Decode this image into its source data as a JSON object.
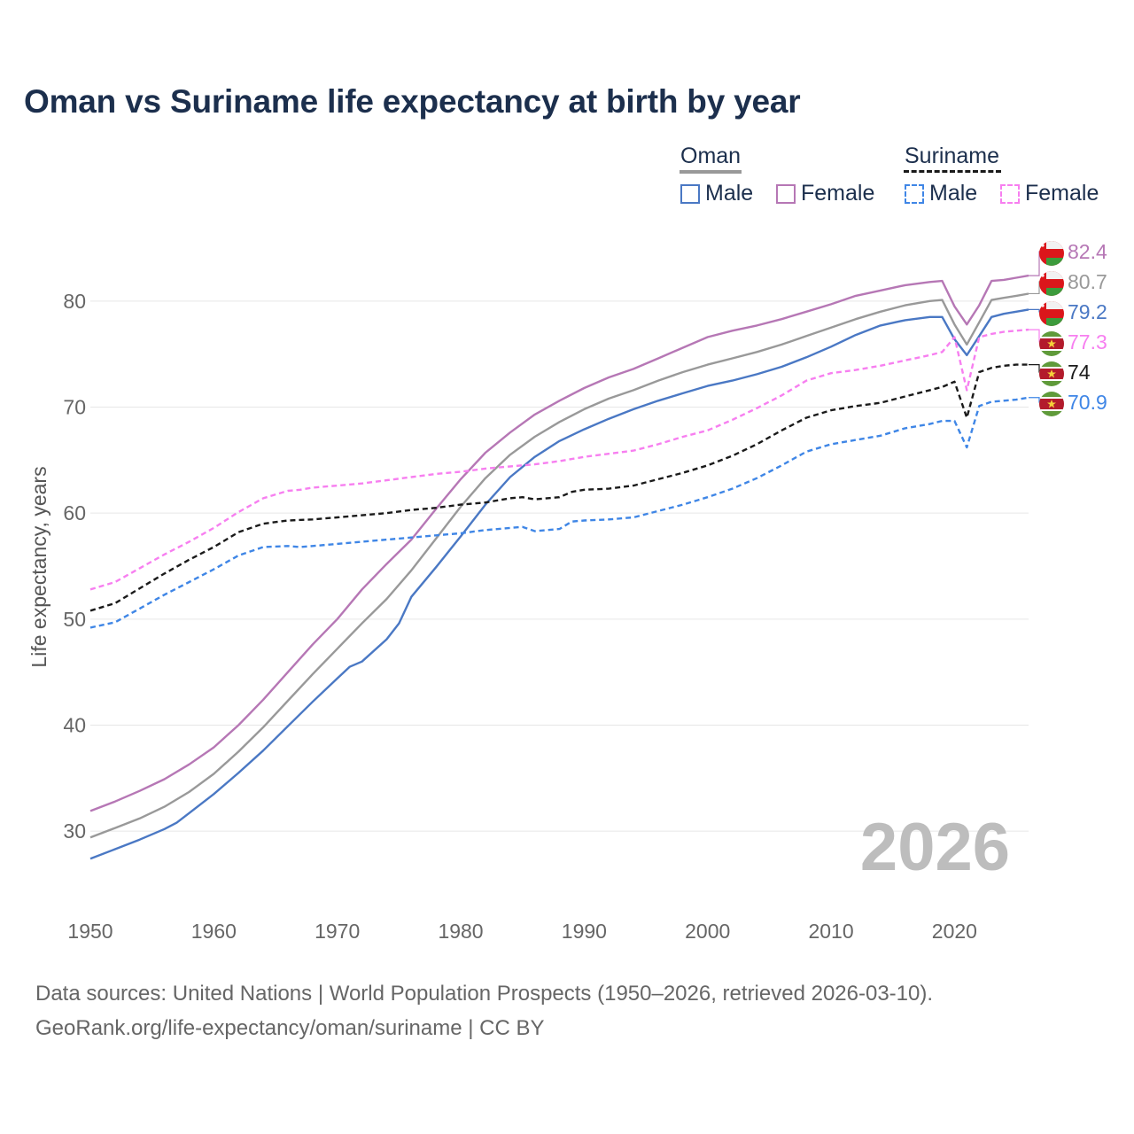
{
  "title": "Oman vs Suriname life expectancy at birth by year",
  "year_watermark": "2026",
  "source_line1": "Data sources: United Nations | World Population Prospects (1950–2026, retrieved 2026-03-10).",
  "source_line2": "GeoRank.org/life-expectancy/oman/suriname | CC BY",
  "legend": {
    "oman": {
      "name": "Oman",
      "male": "Male",
      "female": "Female"
    },
    "suriname": {
      "name": "Suriname",
      "male": "Male",
      "female": "Female"
    }
  },
  "colors": {
    "oman_total": "#999999",
    "oman_male": "#4a78c4",
    "oman_female": "#b677b5",
    "suriname_total": "#1a1a1a",
    "suriname_male": "#3f86e6",
    "suriname_female": "#f77ff0"
  },
  "chart_data": {
    "type": "line",
    "title": "Oman vs Suriname life expectancy at birth by year",
    "xlabel": "",
    "ylabel": "Life expectancy, years",
    "xlim": [
      1950,
      2026
    ],
    "ylim": [
      25,
      85
    ],
    "xticks": [
      1950,
      1960,
      1970,
      1980,
      1990,
      2000,
      2010,
      2020
    ],
    "yticks": [
      30,
      40,
      50,
      60,
      70,
      80
    ],
    "grid": true,
    "series": [
      {
        "key": "oman_female",
        "name": "Oman Female",
        "dashed": false,
        "end_label": "82.4",
        "points": [
          [
            1950,
            31.9
          ],
          [
            1952,
            32.8
          ],
          [
            1954,
            33.8
          ],
          [
            1956,
            34.9
          ],
          [
            1958,
            36.3
          ],
          [
            1960,
            37.9
          ],
          [
            1962,
            40.0
          ],
          [
            1964,
            42.4
          ],
          [
            1966,
            45.0
          ],
          [
            1968,
            47.6
          ],
          [
            1970,
            50.0
          ],
          [
            1972,
            52.8
          ],
          [
            1974,
            55.2
          ],
          [
            1976,
            57.5
          ],
          [
            1978,
            60.4
          ],
          [
            1980,
            63.2
          ],
          [
            1982,
            65.7
          ],
          [
            1984,
            67.6
          ],
          [
            1986,
            69.3
          ],
          [
            1988,
            70.6
          ],
          [
            1990,
            71.8
          ],
          [
            1992,
            72.8
          ],
          [
            1994,
            73.6
          ],
          [
            1996,
            74.6
          ],
          [
            1998,
            75.6
          ],
          [
            2000,
            76.6
          ],
          [
            2002,
            77.2
          ],
          [
            2004,
            77.7
          ],
          [
            2006,
            78.3
          ],
          [
            2008,
            79.0
          ],
          [
            2010,
            79.7
          ],
          [
            2012,
            80.5
          ],
          [
            2014,
            81.0
          ],
          [
            2016,
            81.5
          ],
          [
            2018,
            81.8
          ],
          [
            2019,
            81.9
          ],
          [
            2020,
            79.5
          ],
          [
            2021,
            77.8
          ],
          [
            2022,
            79.6
          ],
          [
            2023,
            81.9
          ],
          [
            2024,
            82.0
          ],
          [
            2025,
            82.2
          ],
          [
            2026,
            82.4
          ]
        ]
      },
      {
        "key": "oman_total",
        "name": "Oman",
        "dashed": false,
        "end_label": "80.7",
        "points": [
          [
            1950,
            29.4
          ],
          [
            1952,
            30.3
          ],
          [
            1954,
            31.2
          ],
          [
            1956,
            32.3
          ],
          [
            1958,
            33.7
          ],
          [
            1960,
            35.4
          ],
          [
            1962,
            37.5
          ],
          [
            1964,
            39.8
          ],
          [
            1966,
            42.3
          ],
          [
            1968,
            44.8
          ],
          [
            1970,
            47.2
          ],
          [
            1972,
            49.6
          ],
          [
            1974,
            51.9
          ],
          [
            1976,
            54.6
          ],
          [
            1978,
            57.6
          ],
          [
            1980,
            60.6
          ],
          [
            1982,
            63.3
          ],
          [
            1984,
            65.5
          ],
          [
            1986,
            67.2
          ],
          [
            1988,
            68.6
          ],
          [
            1990,
            69.8
          ],
          [
            1992,
            70.8
          ],
          [
            1994,
            71.6
          ],
          [
            1996,
            72.5
          ],
          [
            1998,
            73.3
          ],
          [
            2000,
            74.0
          ],
          [
            2002,
            74.6
          ],
          [
            2004,
            75.2
          ],
          [
            2006,
            75.9
          ],
          [
            2008,
            76.7
          ],
          [
            2010,
            77.5
          ],
          [
            2012,
            78.3
          ],
          [
            2014,
            79.0
          ],
          [
            2016,
            79.6
          ],
          [
            2018,
            80.0
          ],
          [
            2019,
            80.1
          ],
          [
            2020,
            77.8
          ],
          [
            2021,
            75.9
          ],
          [
            2022,
            78.0
          ],
          [
            2023,
            80.1
          ],
          [
            2024,
            80.3
          ],
          [
            2025,
            80.5
          ],
          [
            2026,
            80.7
          ]
        ]
      },
      {
        "key": "oman_male",
        "name": "Oman Male",
        "dashed": false,
        "end_label": "79.2",
        "points": [
          [
            1950,
            27.4
          ],
          [
            1952,
            28.3
          ],
          [
            1954,
            29.2
          ],
          [
            1956,
            30.2
          ],
          [
            1957,
            30.8
          ],
          [
            1958,
            31.7
          ],
          [
            1960,
            33.5
          ],
          [
            1962,
            35.5
          ],
          [
            1964,
            37.6
          ],
          [
            1966,
            39.9
          ],
          [
            1968,
            42.2
          ],
          [
            1970,
            44.4
          ],
          [
            1971,
            45.5
          ],
          [
            1972,
            46.0
          ],
          [
            1974,
            48.1
          ],
          [
            1975,
            49.6
          ],
          [
            1976,
            52.1
          ],
          [
            1978,
            54.9
          ],
          [
            1980,
            57.8
          ],
          [
            1982,
            60.8
          ],
          [
            1984,
            63.4
          ],
          [
            1986,
            65.3
          ],
          [
            1988,
            66.8
          ],
          [
            1990,
            67.9
          ],
          [
            1992,
            68.9
          ],
          [
            1994,
            69.8
          ],
          [
            1996,
            70.6
          ],
          [
            1998,
            71.3
          ],
          [
            2000,
            72.0
          ],
          [
            2002,
            72.5
          ],
          [
            2004,
            73.1
          ],
          [
            2006,
            73.8
          ],
          [
            2008,
            74.7
          ],
          [
            2010,
            75.7
          ],
          [
            2012,
            76.8
          ],
          [
            2014,
            77.7
          ],
          [
            2016,
            78.2
          ],
          [
            2018,
            78.5
          ],
          [
            2019,
            78.5
          ],
          [
            2020,
            76.4
          ],
          [
            2021,
            74.9
          ],
          [
            2022,
            76.7
          ],
          [
            2023,
            78.5
          ],
          [
            2024,
            78.8
          ],
          [
            2025,
            79.0
          ],
          [
            2026,
            79.2
          ]
        ]
      },
      {
        "key": "suriname_female",
        "name": "Suriname Female",
        "dashed": true,
        "end_label": "77.3",
        "points": [
          [
            1950,
            52.8
          ],
          [
            1952,
            53.5
          ],
          [
            1954,
            54.8
          ],
          [
            1956,
            56.1
          ],
          [
            1958,
            57.3
          ],
          [
            1960,
            58.6
          ],
          [
            1962,
            60.1
          ],
          [
            1964,
            61.4
          ],
          [
            1966,
            62.1
          ],
          [
            1967,
            62.2
          ],
          [
            1968,
            62.4
          ],
          [
            1970,
            62.6
          ],
          [
            1972,
            62.8
          ],
          [
            1974,
            63.1
          ],
          [
            1976,
            63.4
          ],
          [
            1978,
            63.7
          ],
          [
            1980,
            63.9
          ],
          [
            1982,
            64.2
          ],
          [
            1984,
            64.4
          ],
          [
            1986,
            64.6
          ],
          [
            1988,
            64.9
          ],
          [
            1990,
            65.3
          ],
          [
            1992,
            65.6
          ],
          [
            1994,
            65.9
          ],
          [
            1996,
            66.5
          ],
          [
            1998,
            67.2
          ],
          [
            2000,
            67.8
          ],
          [
            2002,
            68.8
          ],
          [
            2004,
            69.9
          ],
          [
            2006,
            71.1
          ],
          [
            2008,
            72.5
          ],
          [
            2010,
            73.2
          ],
          [
            2012,
            73.5
          ],
          [
            2014,
            73.9
          ],
          [
            2016,
            74.4
          ],
          [
            2018,
            74.9
          ],
          [
            2019,
            75.2
          ],
          [
            2020,
            76.6
          ],
          [
            2021,
            71.6
          ],
          [
            2022,
            76.6
          ],
          [
            2023,
            76.9
          ],
          [
            2024,
            77.1
          ],
          [
            2025,
            77.2
          ],
          [
            2026,
            77.3
          ]
        ]
      },
      {
        "key": "suriname_total",
        "name": "Suriname",
        "dashed": true,
        "end_label": "74",
        "points": [
          [
            1950,
            50.8
          ],
          [
            1952,
            51.5
          ],
          [
            1954,
            52.9
          ],
          [
            1956,
            54.3
          ],
          [
            1958,
            55.6
          ],
          [
            1960,
            56.8
          ],
          [
            1962,
            58.2
          ],
          [
            1964,
            59.0
          ],
          [
            1966,
            59.3
          ],
          [
            1968,
            59.4
          ],
          [
            1970,
            59.6
          ],
          [
            1972,
            59.8
          ],
          [
            1974,
            60.0
          ],
          [
            1976,
            60.3
          ],
          [
            1978,
            60.5
          ],
          [
            1980,
            60.8
          ],
          [
            1982,
            61.0
          ],
          [
            1984,
            61.4
          ],
          [
            1985,
            61.5
          ],
          [
            1986,
            61.3
          ],
          [
            1988,
            61.5
          ],
          [
            1989,
            62.0
          ],
          [
            1990,
            62.2
          ],
          [
            1992,
            62.3
          ],
          [
            1994,
            62.6
          ],
          [
            1996,
            63.2
          ],
          [
            1998,
            63.8
          ],
          [
            2000,
            64.5
          ],
          [
            2002,
            65.4
          ],
          [
            2004,
            66.5
          ],
          [
            2006,
            67.8
          ],
          [
            2008,
            69.0
          ],
          [
            2010,
            69.7
          ],
          [
            2012,
            70.1
          ],
          [
            2014,
            70.4
          ],
          [
            2016,
            71.0
          ],
          [
            2018,
            71.6
          ],
          [
            2019,
            71.9
          ],
          [
            2020,
            72.4
          ],
          [
            2021,
            69.0
          ],
          [
            2022,
            73.3
          ],
          [
            2023,
            73.7
          ],
          [
            2024,
            73.9
          ],
          [
            2025,
            74.0
          ],
          [
            2026,
            74.0
          ]
        ]
      },
      {
        "key": "suriname_male",
        "name": "Suriname Male",
        "dashed": true,
        "end_label": "70.9",
        "points": [
          [
            1950,
            49.2
          ],
          [
            1952,
            49.7
          ],
          [
            1954,
            51.0
          ],
          [
            1956,
            52.3
          ],
          [
            1958,
            53.5
          ],
          [
            1960,
            54.7
          ],
          [
            1962,
            56.0
          ],
          [
            1964,
            56.8
          ],
          [
            1966,
            56.9
          ],
          [
            1967,
            56.8
          ],
          [
            1968,
            56.9
          ],
          [
            1970,
            57.1
          ],
          [
            1972,
            57.3
          ],
          [
            1974,
            57.5
          ],
          [
            1976,
            57.7
          ],
          [
            1978,
            57.9
          ],
          [
            1980,
            58.1
          ],
          [
            1982,
            58.4
          ],
          [
            1984,
            58.6
          ],
          [
            1985,
            58.7
          ],
          [
            1986,
            58.3
          ],
          [
            1988,
            58.5
          ],
          [
            1989,
            59.2
          ],
          [
            1990,
            59.3
          ],
          [
            1992,
            59.4
          ],
          [
            1994,
            59.6
          ],
          [
            1996,
            60.2
          ],
          [
            1998,
            60.8
          ],
          [
            2000,
            61.5
          ],
          [
            2002,
            62.3
          ],
          [
            2004,
            63.3
          ],
          [
            2006,
            64.5
          ],
          [
            2008,
            65.8
          ],
          [
            2010,
            66.5
          ],
          [
            2012,
            66.9
          ],
          [
            2014,
            67.3
          ],
          [
            2016,
            68.0
          ],
          [
            2018,
            68.4
          ],
          [
            2019,
            68.7
          ],
          [
            2020,
            68.7
          ],
          [
            2021,
            66.2
          ],
          [
            2022,
            70.1
          ],
          [
            2023,
            70.5
          ],
          [
            2024,
            70.6
          ],
          [
            2025,
            70.7
          ],
          [
            2026,
            70.9
          ]
        ]
      }
    ]
  }
}
